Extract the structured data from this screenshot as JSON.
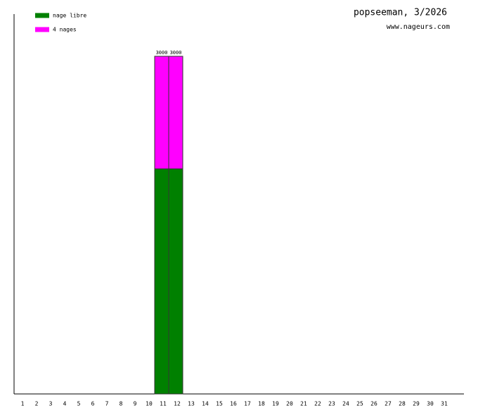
{
  "chart_data": {
    "type": "stacked-bar",
    "title": "popseeman, 3/2026",
    "subtitle": "www.nageurs.com",
    "categories": [
      "1",
      "2",
      "3",
      "4",
      "5",
      "6",
      "7",
      "8",
      "9",
      "10",
      "11",
      "12",
      "13",
      "14",
      "15",
      "16",
      "17",
      "18",
      "19",
      "20",
      "21",
      "22",
      "23",
      "24",
      "25",
      "26",
      "27",
      "28",
      "29",
      "30",
      "31"
    ],
    "series": [
      {
        "name": "nage libre",
        "color": "#008000",
        "values": [
          null,
          null,
          null,
          null,
          null,
          null,
          null,
          null,
          null,
          null,
          2000,
          2000,
          null,
          null,
          null,
          null,
          null,
          null,
          null,
          null,
          null,
          null,
          null,
          null,
          null,
          null,
          null,
          null,
          null,
          null,
          null
        ]
      },
      {
        "name": "4 nages",
        "color": "#ff00ff",
        "values": [
          null,
          null,
          null,
          null,
          null,
          null,
          null,
          null,
          null,
          null,
          1000,
          1000,
          null,
          null,
          null,
          null,
          null,
          null,
          null,
          null,
          null,
          null,
          null,
          null,
          null,
          null,
          null,
          null,
          null,
          null,
          null
        ]
      }
    ],
    "totals": [
      null,
      null,
      null,
      null,
      null,
      null,
      null,
      null,
      null,
      null,
      3000,
      3000,
      null,
      null,
      null,
      null,
      null,
      null,
      null,
      null,
      null,
      null,
      null,
      null,
      null,
      null,
      null,
      null,
      null,
      null,
      null
    ],
    "ylim": [
      0,
      3375
    ]
  }
}
